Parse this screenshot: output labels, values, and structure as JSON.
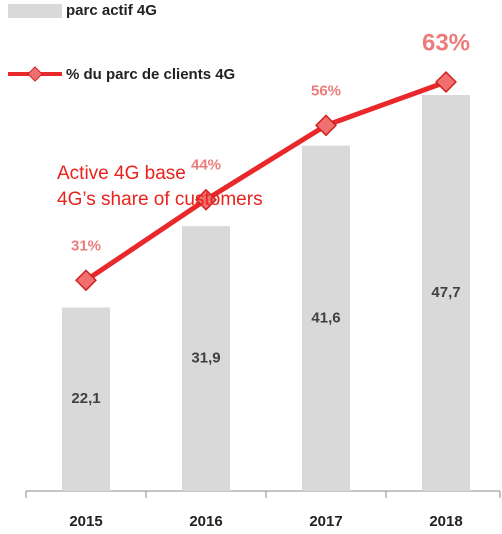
{
  "chart_data": {
    "type": "bar-line",
    "categories": [
      "2015",
      "2016",
      "2017",
      "2018"
    ],
    "series": [
      {
        "name": "parc actif 4G",
        "type": "bar",
        "color": "#d9d9d9",
        "values": [
          22.1,
          31.9,
          41.6,
          47.7
        ],
        "value_labels": [
          "22,1",
          "31,9",
          "41,6",
          "47,7"
        ]
      },
      {
        "name": "% du parc de clients 4G",
        "type": "line",
        "axis": "y2",
        "color": "#e8282b",
        "values": [
          31,
          44,
          56,
          63
        ],
        "value_labels": [
          "31%",
          "44%",
          "56%",
          "63%"
        ]
      }
    ],
    "ylim": [
      0,
      53
    ],
    "y2lim": [
      -3,
      68
    ],
    "annotations": [
      "Active 4G base",
      "4G’s share of customers"
    ]
  }
}
